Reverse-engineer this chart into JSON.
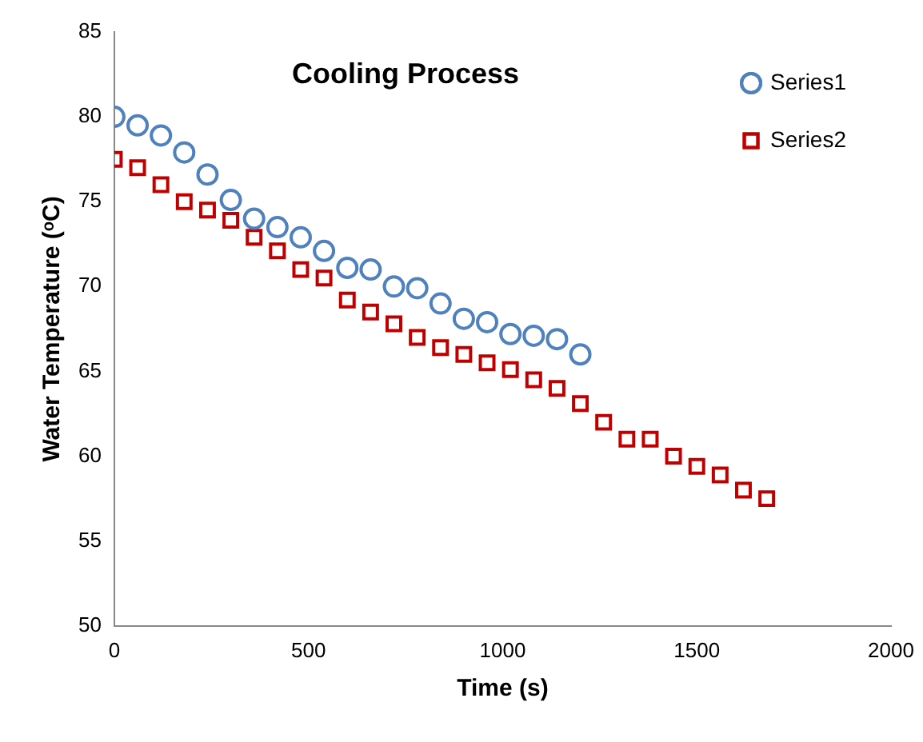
{
  "chart_data": {
    "type": "scatter",
    "title": "Cooling Process",
    "xlabel": "Time (s)",
    "ylabel": "Water Temperature (ᵒC)",
    "xlim": [
      0,
      2000
    ],
    "xticks": [
      0,
      500,
      1000,
      1500,
      2000
    ],
    "ylim": [
      50,
      85
    ],
    "yticks": [
      50,
      55,
      60,
      65,
      70,
      75,
      80,
      85
    ],
    "grid": false,
    "legend": "top right",
    "series": [
      {
        "name": "Series1",
        "color": "#4f81bd",
        "marker": "circle",
        "x": [
          0,
          60,
          120,
          180,
          240,
          300,
          360,
          420,
          480,
          540,
          600,
          660,
          720,
          780,
          840,
          900,
          960,
          1020,
          1080,
          1140,
          1200
        ],
        "values": [
          80,
          79.5,
          78.9,
          77.9,
          76.6,
          75.1,
          74.0,
          73.5,
          72.9,
          72.1,
          71.1,
          71.0,
          70.0,
          69.9,
          69.0,
          68.1,
          67.9,
          67.2,
          67.1,
          66.9,
          66.0
        ]
      },
      {
        "name": "Series2",
        "color": "#c00000",
        "marker": "square",
        "x": [
          0,
          60,
          120,
          180,
          240,
          300,
          360,
          420,
          480,
          540,
          600,
          660,
          720,
          780,
          840,
          900,
          960,
          1020,
          1080,
          1140,
          1200,
          1260,
          1320,
          1380,
          1440,
          1500,
          1560,
          1620,
          1680
        ],
        "values": [
          77.5,
          77.0,
          76.0,
          75.0,
          74.5,
          73.9,
          72.9,
          72.1,
          71.0,
          70.5,
          69.2,
          68.5,
          67.8,
          67.0,
          66.4,
          66.0,
          65.5,
          65.1,
          64.5,
          64.0,
          63.1,
          62.0,
          61.0,
          61.0,
          60.0,
          59.4,
          58.9,
          58.0,
          57.5
        ]
      }
    ]
  }
}
